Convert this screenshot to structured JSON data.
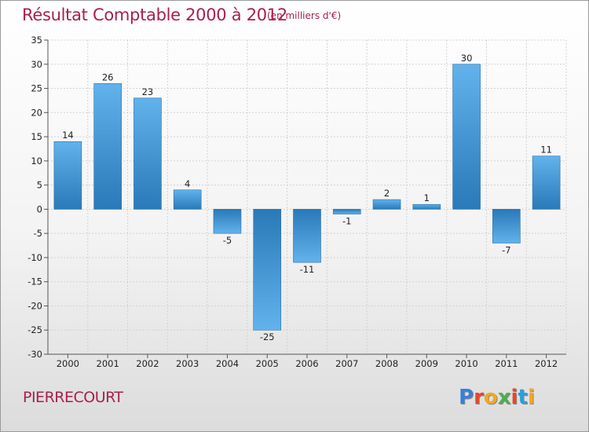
{
  "header": {
    "title": "Résultat Comptable 2000 à 2012",
    "subtitle": "(en milliers d'€)"
  },
  "footer": {
    "place": "PIERRECOURT",
    "logo": "Proxiti",
    "logo_colors": [
      "#3a7fd5",
      "#e8462a",
      "#f5a623",
      "#4caf50",
      "#e8462a",
      "#2a9fd8",
      "#f5a623"
    ]
  },
  "chart_data": {
    "type": "bar",
    "title": "Résultat Comptable 2000 à 2012",
    "subtitle": "(en milliers d'€)",
    "xlabel": "",
    "ylabel": "",
    "categories": [
      "2000",
      "2001",
      "2002",
      "2003",
      "2004",
      "2005",
      "2006",
      "2007",
      "2008",
      "2009",
      "2010",
      "2011",
      "2012"
    ],
    "values": [
      14,
      26,
      23,
      4,
      -5,
      -25,
      -11,
      -1,
      2,
      1,
      30,
      -7,
      11
    ],
    "value_labels": [
      "14",
      "26",
      "23",
      "4",
      "-5",
      "-25",
      "-11",
      "-1",
      "2",
      "1",
      "30",
      "-7",
      "11"
    ],
    "ylim": [
      -30,
      35
    ],
    "yticks": [
      35,
      30,
      25,
      20,
      15,
      10,
      5,
      0,
      -5,
      -10,
      -15,
      -20,
      -25,
      -30
    ],
    "grid": true,
    "bar_color_light": "#5aaae6",
    "bar_color_dark": "#2a7ab8"
  }
}
